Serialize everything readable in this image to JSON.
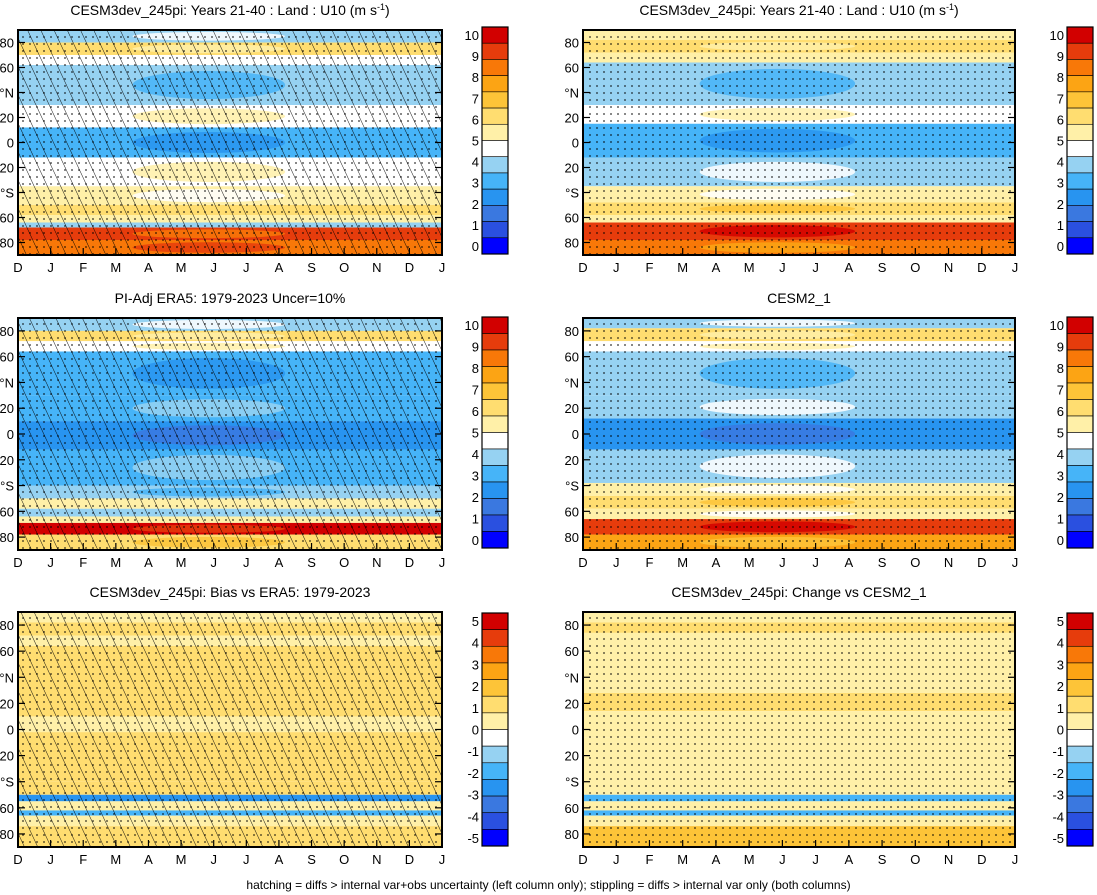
{
  "footer": "hatching = diffs > internal var+obs uncertainty (left column only); stippling = diffs > internal var only (both columns)",
  "colors": {
    "abs": [
      "#0000ff",
      "#2a50e0",
      "#3a78e0",
      "#2894f0",
      "#46b4f8",
      "#96d2f2",
      "#ffffff",
      "#fff0a8",
      "#ffdd70",
      "#fdc438",
      "#fca414",
      "#f87808",
      "#e63c0c",
      "#d20000"
    ],
    "diff": [
      "#0000ff",
      "#2a50e0",
      "#3a78e0",
      "#2894f0",
      "#46b4f8",
      "#96d2f2",
      "#ffffff",
      "#fff0a8",
      "#ffdd70",
      "#fdc438",
      "#fca414",
      "#f87808",
      "#e63c0c",
      "#d20000"
    ]
  },
  "chart_data": [
    {
      "id": "p1",
      "type": "heatmap",
      "title": "CESM3dev_245pi: Years 21-40 : Land : U10 (m s",
      "title_sup": "-1",
      "title_suffix": ")",
      "x_ticks": [
        "D",
        "J",
        "F",
        "M",
        "A",
        "M",
        "J",
        "J",
        "A",
        "S",
        "O",
        "N",
        "D",
        "J"
      ],
      "y_ticks": [
        "80",
        "60",
        "°N",
        "20",
        "0",
        "20",
        "°S",
        "60",
        "80"
      ],
      "colorbar": [
        "10",
        "9",
        "8",
        "7",
        "6",
        "5",
        "4",
        "3",
        "2",
        "1",
        "0"
      ],
      "ylim": [
        -90,
        90
      ],
      "bands": [
        {
          "lat": [
            80,
            90
          ],
          "value": 4.2
        },
        {
          "lat": [
            70,
            80
          ],
          "value": 6.3
        },
        {
          "lat": [
            62,
            70
          ],
          "value": 4.8
        },
        {
          "lat": [
            30,
            62
          ],
          "value": 3.8
        },
        {
          "lat": [
            12,
            30
          ],
          "value": 4.6
        },
        {
          "lat": [
            -12,
            12
          ],
          "value": 3.0
        },
        {
          "lat": [
            -35,
            -12
          ],
          "value": 4.4
        },
        {
          "lat": [
            -50,
            -35
          ],
          "value": 5.0
        },
        {
          "lat": [
            -58,
            -50
          ],
          "value": 6.0
        },
        {
          "lat": [
            -64,
            -58
          ],
          "value": 5.0
        },
        {
          "lat": [
            -68,
            -64
          ],
          "value": 4.0
        },
        {
          "lat": [
            -78,
            -68
          ],
          "value": 9.5
        },
        {
          "lat": [
            -90,
            -78
          ],
          "value": 8.3
        }
      ],
      "hatch": true,
      "stipple": true
    },
    {
      "id": "p2",
      "type": "heatmap",
      "title": "CESM3dev_245pi: Years 21-40 : Land : U10 (m s",
      "title_sup": "-1",
      "title_suffix": ")",
      "x_ticks": [
        "D",
        "J",
        "F",
        "M",
        "A",
        "M",
        "J",
        "J",
        "A",
        "S",
        "O",
        "N",
        "D",
        "J"
      ],
      "y_ticks": [
        "80",
        "60",
        "°N",
        "20",
        "0",
        "20",
        "°S",
        "60",
        "80"
      ],
      "colorbar": [
        "10",
        "9",
        "8",
        "7",
        "6",
        "5",
        "4",
        "3",
        "2",
        "1",
        "0"
      ],
      "ylim": [
        -90,
        90
      ],
      "bands": [
        {
          "lat": [
            82,
            90
          ],
          "value": 5.0
        },
        {
          "lat": [
            72,
            82
          ],
          "value": 6.4
        },
        {
          "lat": [
            64,
            72
          ],
          "value": 5.0
        },
        {
          "lat": [
            30,
            64
          ],
          "value": 3.9
        },
        {
          "lat": [
            15,
            30
          ],
          "value": 4.6
        },
        {
          "lat": [
            -12,
            15
          ],
          "value": 2.8
        },
        {
          "lat": [
            -35,
            -12
          ],
          "value": 4.1
        },
        {
          "lat": [
            -48,
            -35
          ],
          "value": 5.0
        },
        {
          "lat": [
            -58,
            -48
          ],
          "value": 6.2
        },
        {
          "lat": [
            -64,
            -58
          ],
          "value": 5.0
        },
        {
          "lat": [
            -78,
            -64
          ],
          "value": 9.6
        },
        {
          "lat": [
            -90,
            -78
          ],
          "value": 8.2
        }
      ],
      "hatch": false,
      "stipple": true
    },
    {
      "id": "p3",
      "type": "heatmap",
      "title": "PI-Adj ERA5: 1979-2023 Uncer=10%",
      "x_ticks": [
        "D",
        "J",
        "F",
        "M",
        "A",
        "M",
        "J",
        "J",
        "A",
        "S",
        "O",
        "N",
        "D",
        "J"
      ],
      "y_ticks": [
        "80",
        "60",
        "°N",
        "20",
        "0",
        "20",
        "°S",
        "60",
        "80"
      ],
      "colorbar": [
        "10",
        "9",
        "8",
        "7",
        "6",
        "5",
        "4",
        "3",
        "2",
        "1",
        "0"
      ],
      "ylim": [
        -90,
        90
      ],
      "bands": [
        {
          "lat": [
            80,
            90
          ],
          "value": 4.2
        },
        {
          "lat": [
            72,
            80
          ],
          "value": 6.2
        },
        {
          "lat": [
            64,
            72
          ],
          "value": 4.8
        },
        {
          "lat": [
            30,
            64
          ],
          "value": 3.2
        },
        {
          "lat": [
            10,
            30
          ],
          "value": 3.4
        },
        {
          "lat": [
            -12,
            10
          ],
          "value": 2.6
        },
        {
          "lat": [
            -40,
            -12
          ],
          "value": 3.2
        },
        {
          "lat": [
            -50,
            -40
          ],
          "value": 3.6
        },
        {
          "lat": [
            -58,
            -50
          ],
          "value": 5.0
        },
        {
          "lat": [
            -64,
            -58
          ],
          "value": 4.0
        },
        {
          "lat": [
            -69,
            -64
          ],
          "value": 5.0
        },
        {
          "lat": [
            -78,
            -69
          ],
          "value": 10.0
        },
        {
          "lat": [
            -90,
            -78
          ],
          "value": 6.2
        }
      ],
      "hatch": true,
      "stipple": true
    },
    {
      "id": "p4",
      "type": "heatmap",
      "title": "CESM2_1",
      "x_ticks": [
        "D",
        "J",
        "F",
        "M",
        "A",
        "M",
        "J",
        "J",
        "A",
        "S",
        "O",
        "N",
        "D",
        "J"
      ],
      "y_ticks": [
        "80",
        "60",
        "°N",
        "20",
        "0",
        "20",
        "°S",
        "60",
        "80"
      ],
      "colorbar": [
        "10",
        "9",
        "8",
        "7",
        "6",
        "5",
        "4",
        "3",
        "2",
        "1",
        "0"
      ],
      "ylim": [
        -90,
        90
      ],
      "bands": [
        {
          "lat": [
            82,
            90
          ],
          "value": 4.2
        },
        {
          "lat": [
            72,
            82
          ],
          "value": 6.2
        },
        {
          "lat": [
            64,
            72
          ],
          "value": 4.4
        },
        {
          "lat": [
            30,
            64
          ],
          "value": 3.6
        },
        {
          "lat": [
            12,
            30
          ],
          "value": 4.0
        },
        {
          "lat": [
            -12,
            12
          ],
          "value": 2.5
        },
        {
          "lat": [
            -38,
            -12
          ],
          "value": 3.8
        },
        {
          "lat": [
            -48,
            -38
          ],
          "value": 5.0
        },
        {
          "lat": [
            -58,
            -48
          ],
          "value": 6.5
        },
        {
          "lat": [
            -66,
            -58
          ],
          "value": 5.0
        },
        {
          "lat": [
            -78,
            -66
          ],
          "value": 9.5
        },
        {
          "lat": [
            -90,
            -78
          ],
          "value": 8.0
        }
      ],
      "hatch": false,
      "stipple": true
    },
    {
      "id": "p5",
      "type": "heatmap",
      "title": "CESM3dev_245pi: Bias vs ERA5: 1979-2023",
      "x_ticks": [
        "D",
        "J",
        "F",
        "M",
        "A",
        "M",
        "J",
        "J",
        "A",
        "S",
        "O",
        "N",
        "D",
        "J"
      ],
      "y_ticks": [
        "80",
        "60",
        "°N",
        "20",
        "0",
        "20",
        "°S",
        "60",
        "80"
      ],
      "colorbar": [
        "5",
        "4",
        "3",
        "2",
        "1",
        "0",
        "-1",
        "-2",
        "-3",
        "-4",
        "-5"
      ],
      "ylim": [
        -90,
        90
      ],
      "bands": [
        {
          "lat": [
            82,
            90
          ],
          "value": 0.0
        },
        {
          "lat": [
            72,
            82
          ],
          "value": 1.0
        },
        {
          "lat": [
            64,
            72
          ],
          "value": 0.0
        },
        {
          "lat": [
            10,
            64
          ],
          "value": 1.5
        },
        {
          "lat": [
            -2,
            10
          ],
          "value": 0.0
        },
        {
          "lat": [
            -40,
            -2
          ],
          "value": 1.5
        },
        {
          "lat": [
            -50,
            -40
          ],
          "value": 0.8
        },
        {
          "lat": [
            -55,
            -50
          ],
          "value": -3.0
        },
        {
          "lat": [
            -62,
            -55
          ],
          "value": 0.0
        },
        {
          "lat": [
            -66,
            -62
          ],
          "value": -2.0
        },
        {
          "lat": [
            -74,
            -66
          ],
          "value": 0.0
        },
        {
          "lat": [
            -90,
            -74
          ],
          "value": 1.5
        }
      ],
      "hatch": true,
      "stipple": true
    },
    {
      "id": "p6",
      "type": "heatmap",
      "title": "CESM3dev_245pi: Change vs CESM2_1",
      "x_ticks": [
        "D",
        "J",
        "F",
        "M",
        "A",
        "M",
        "J",
        "J",
        "A",
        "S",
        "O",
        "N",
        "D",
        "J"
      ],
      "y_ticks": [
        "80",
        "60",
        "°N",
        "20",
        "0",
        "20",
        "°S",
        "60",
        "80"
      ],
      "colorbar": [
        "5",
        "4",
        "3",
        "2",
        "1",
        "0",
        "-1",
        "-2",
        "-3",
        "-4",
        "-5"
      ],
      "ylim": [
        -90,
        90
      ],
      "bands": [
        {
          "lat": [
            82,
            90
          ],
          "value": 0.0
        },
        {
          "lat": [
            74,
            82
          ],
          "value": 0.8
        },
        {
          "lat": [
            28,
            74
          ],
          "value": 0.0
        },
        {
          "lat": [
            14,
            28
          ],
          "value": 0.9
        },
        {
          "lat": [
            -6,
            14
          ],
          "value": 0.0
        },
        {
          "lat": [
            -10,
            -6
          ],
          "value": 0.6
        },
        {
          "lat": [
            -50,
            -10
          ],
          "value": 0.0
        },
        {
          "lat": [
            -55,
            -50
          ],
          "value": -1.8
        },
        {
          "lat": [
            -62,
            -55
          ],
          "value": 0.0
        },
        {
          "lat": [
            -66,
            -62
          ],
          "value": -2.2
        },
        {
          "lat": [
            -74,
            -66
          ],
          "value": 0.0
        },
        {
          "lat": [
            -90,
            -74
          ],
          "value": 1.6
        }
      ],
      "hatch": false,
      "stipple": true
    }
  ]
}
